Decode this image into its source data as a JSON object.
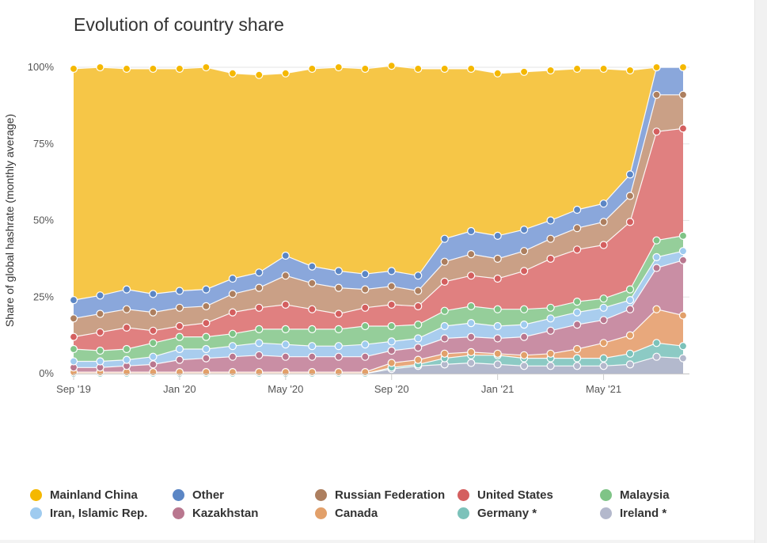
{
  "chart_data": {
    "type": "area",
    "stacked": "percent",
    "title": "Evolution of country share",
    "ylabel": "Share of global hashrate (monthly average)",
    "xlabel": "",
    "ylim": [
      0,
      100
    ],
    "yticks": [
      "0%",
      "25%",
      "50%",
      "75%",
      "100%"
    ],
    "x": [
      "2019-09",
      "2019-10",
      "2019-11",
      "2019-12",
      "2020-01",
      "2020-02",
      "2020-03",
      "2020-04",
      "2020-05",
      "2020-06",
      "2020-07",
      "2020-08",
      "2020-09",
      "2020-10",
      "2020-11",
      "2020-12",
      "2021-01",
      "2021-02",
      "2021-03",
      "2021-04",
      "2021-05",
      "2021-06",
      "2021-07",
      "2021-08"
    ],
    "xticks": [
      {
        "x": "2019-09",
        "label": "Sep '19"
      },
      {
        "x": "2020-01",
        "label": "Jan '20"
      },
      {
        "x": "2020-05",
        "label": "May '20"
      },
      {
        "x": "2020-09",
        "label": "Sep '20"
      },
      {
        "x": "2021-01",
        "label": "Jan '21"
      },
      {
        "x": "2021-05",
        "label": "May '21"
      }
    ],
    "grid": true,
    "legend_position": "bottom",
    "series": [
      {
        "name": "Ireland *",
        "color": "#b3b9cd",
        "values": [
          0,
          0,
          0,
          0,
          0,
          0,
          0,
          0,
          0,
          0,
          0,
          0,
          1.5,
          2.5,
          3,
          3.5,
          3,
          2.5,
          2.5,
          2.5,
          2.5,
          3,
          5.5,
          5
        ]
      },
      {
        "name": "Germany *",
        "color": "#8ccac4",
        "values": [
          0,
          0,
          0,
          0,
          0,
          0,
          0,
          0,
          0,
          0,
          0,
          0,
          0.5,
          0.5,
          2,
          2.5,
          3,
          2.5,
          2.5,
          2.5,
          2.5,
          3.5,
          4.5,
          4
        ]
      },
      {
        "name": "Canada",
        "color": "#e8a87c",
        "values": [
          0.5,
          0.5,
          0.5,
          0.5,
          0.5,
          0.5,
          0.5,
          0.5,
          0.5,
          0.5,
          0.5,
          0.5,
          1.5,
          1.5,
          1.5,
          1,
          0.5,
          1,
          1.5,
          3,
          5,
          6,
          11,
          10
        ]
      },
      {
        "name": "Kazakhstan",
        "color": "#c98ea4",
        "values": [
          1.5,
          1.5,
          2,
          2.5,
          4,
          4.5,
          5,
          5.5,
          5,
          5,
          5,
          5,
          4,
          4,
          5,
          5,
          5,
          6,
          7.5,
          8,
          7.5,
          8.5,
          13.5,
          18
        ]
      },
      {
        "name": "Iran, Islamic Rep.",
        "color": "#a9cdee",
        "values": [
          2,
          2,
          2,
          2.5,
          3.5,
          3,
          3.5,
          4,
          4,
          3.5,
          3.5,
          4,
          3,
          3,
          4,
          4.5,
          4,
          4,
          4,
          4,
          4,
          3,
          3.5,
          3
        ]
      },
      {
        "name": "Malaysia",
        "color": "#95ce9a",
        "values": [
          4,
          3.5,
          3.5,
          4.5,
          4,
          4,
          4,
          4.5,
          5,
          5.5,
          5.5,
          6,
          5,
          4.5,
          5,
          5.5,
          5.5,
          5,
          3.5,
          3.5,
          3,
          3.5,
          5.5,
          5
        ]
      },
      {
        "name": "United States",
        "color": "#e08080",
        "values": [
          4,
          6,
          7,
          4,
          3.5,
          4.5,
          7,
          7,
          8,
          6.5,
          5,
          6,
          7,
          6,
          9.5,
          10,
          10,
          12.5,
          16,
          17,
          17.5,
          22,
          35.5,
          35
        ]
      },
      {
        "name": "Russian Federation",
        "color": "#caa086",
        "values": [
          6,
          6,
          6,
          6,
          6,
          5.5,
          6,
          6.5,
          9.5,
          8.5,
          8.5,
          6,
          6,
          5,
          6.5,
          7,
          6.5,
          6.5,
          6.5,
          7,
          7.5,
          8.5,
          12,
          11
        ]
      },
      {
        "name": "Other",
        "color": "#8aa7db",
        "values": [
          6,
          6,
          6.5,
          6,
          5.5,
          5.5,
          5,
          5,
          6.5,
          5.5,
          5.5,
          5,
          5,
          5,
          7.5,
          7.5,
          7.5,
          7,
          6,
          6,
          6,
          7,
          9,
          9
        ]
      },
      {
        "name": "Mainland China",
        "color": "#f6c647",
        "values": [
          75.5,
          74.5,
          72,
          73.5,
          72.5,
          72.5,
          67,
          64.5,
          59.5,
          64.5,
          66.5,
          67,
          67,
          67.5,
          55.5,
          53,
          53,
          51.5,
          49,
          46,
          44,
          34,
          0,
          0
        ]
      }
    ],
    "legend": [
      {
        "name": "Mainland China",
        "color": "#f5b800"
      },
      {
        "name": "Other",
        "color": "#5b86c5"
      },
      {
        "name": "Russian Federation",
        "color": "#ad7f5f"
      },
      {
        "name": "United States",
        "color": "#d45f5f"
      },
      {
        "name": "Malaysia",
        "color": "#7fc487"
      },
      {
        "name": "Iran, Islamic Rep.",
        "color": "#9fcbef"
      },
      {
        "name": "Kazakhstan",
        "color": "#b9778f"
      },
      {
        "name": "Canada",
        "color": "#e2a06a"
      },
      {
        "name": "Germany *",
        "color": "#7cc2ba"
      },
      {
        "name": "Ireland *",
        "color": "#b3b8cc"
      }
    ]
  }
}
